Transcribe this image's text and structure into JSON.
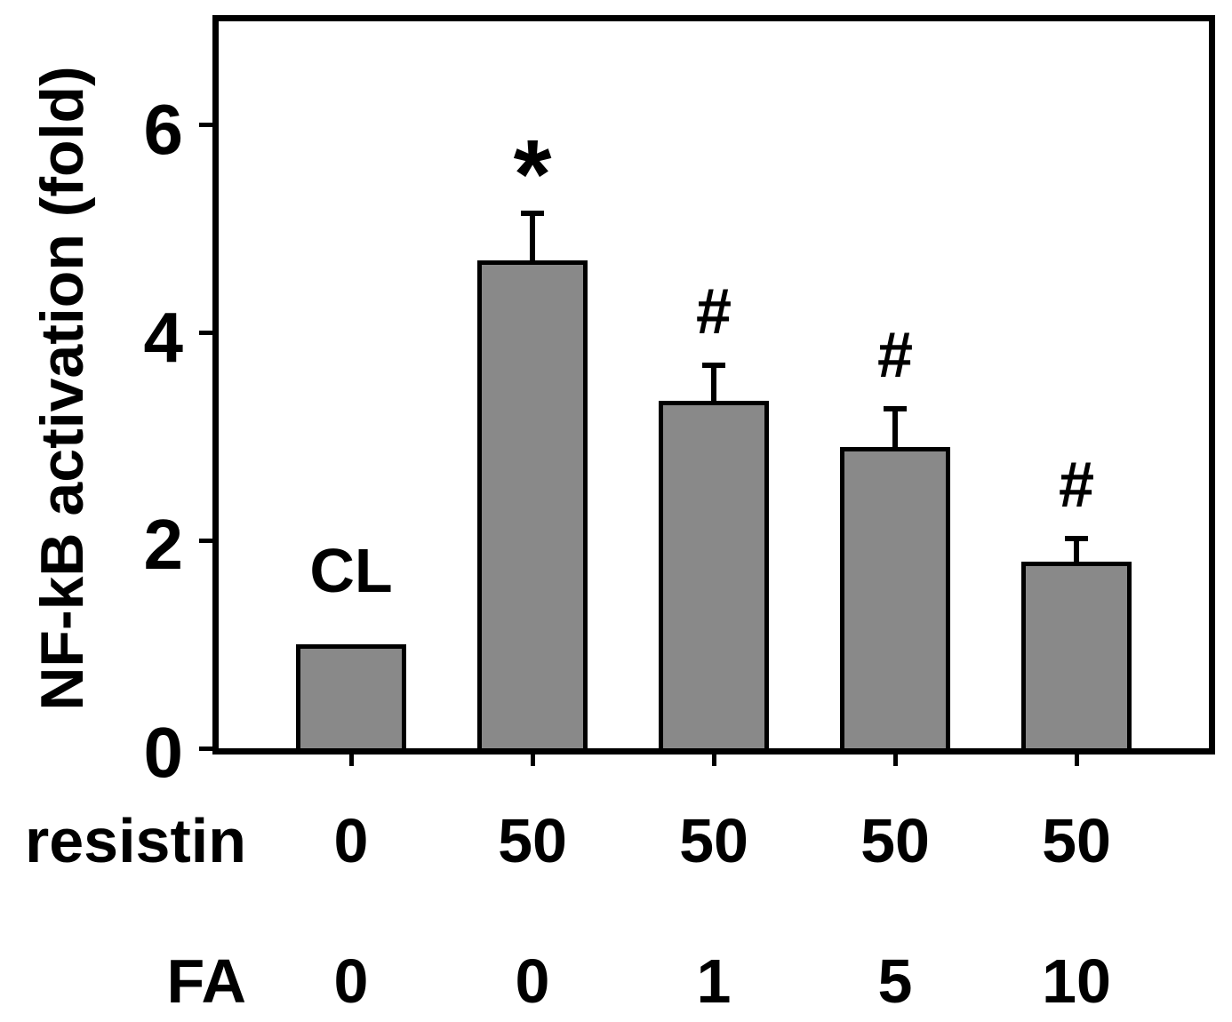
{
  "figure": {
    "background": "#ffffff",
    "bar_fill": "#898989",
    "line_color": "#000000"
  },
  "chart_data": {
    "type": "bar",
    "title": "",
    "ylabel": "NF-kB activation (fold)",
    "xlabel": "",
    "ylim": [
      0,
      7
    ],
    "yticks": [
      "0",
      "2",
      "4",
      "6"
    ],
    "grid": false,
    "legend": null,
    "values": [
      1.0,
      4.7,
      3.35,
      2.9,
      1.8
    ],
    "errors": [
      null,
      0.45,
      0.34,
      0.37,
      0.22
    ],
    "annotations": [
      "CL",
      "*",
      "#",
      "#",
      "#"
    ],
    "x_rows": [
      {
        "label": "resistin",
        "values": [
          "0",
          "50",
          "50",
          "50",
          "50"
        ]
      },
      {
        "label": "FA",
        "values": [
          "0",
          "0",
          "1",
          "5",
          "10"
        ]
      }
    ]
  }
}
